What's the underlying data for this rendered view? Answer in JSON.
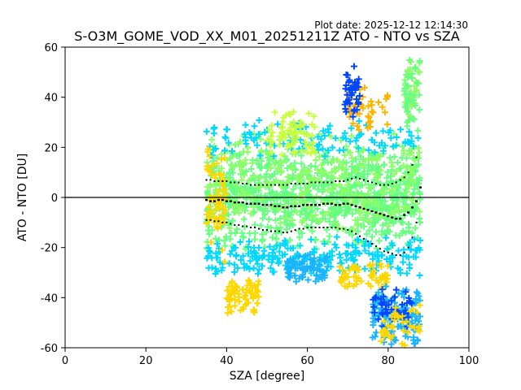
{
  "plot_date": "Plot date: 2025-12-12 12:14:30",
  "chart_data": {
    "type": "scatter",
    "title": "S-O3M_GOME_VOD_XX_M01_20251211Z ATO - NTO vs SZA",
    "xlabel": "SZA [degree]",
    "ylabel": "ATO - NTO [DU]",
    "xlim": [
      0,
      100
    ],
    "ylim": [
      -60,
      60
    ],
    "xticks": [
      0,
      20,
      40,
      60,
      80,
      100
    ],
    "yticks": [
      -60,
      -40,
      -20,
      0,
      20,
      40,
      60
    ],
    "grid": false,
    "reference_line_y": 0,
    "colors": {
      "cyan": "#00d8ff",
      "lightblue": "#1ab4ff",
      "blue": "#0046ff",
      "green": "#66ff80",
      "lightgreen": "#8cff66",
      "yellowgreen": "#c8ff3c",
      "yellow": "#ffd700",
      "orange": "#ffb400",
      "line": "#000000"
    },
    "scatter_clusters": [
      {
        "color": "green",
        "x": [
          35,
          88
        ],
        "y": [
          -22,
          22
        ],
        "n": 900
      },
      {
        "color": "lightgreen",
        "x": [
          35,
          88
        ],
        "y": [
          -15,
          28
        ],
        "n": 300
      },
      {
        "color": "cyan",
        "x": [
          35,
          88
        ],
        "y": [
          -32,
          -15
        ],
        "n": 220
      },
      {
        "color": "cyan",
        "x": [
          35,
          88
        ],
        "y": [
          15,
          32
        ],
        "n": 120
      },
      {
        "color": "lightblue",
        "x": [
          55,
          65
        ],
        "y": [
          -35,
          -22
        ],
        "n": 80
      },
      {
        "color": "yellow",
        "x": [
          35,
          40
        ],
        "y": [
          -28,
          25
        ],
        "n": 60
      },
      {
        "color": "yellow",
        "x": [
          40,
          48
        ],
        "y": [
          -48,
          -30
        ],
        "n": 70
      },
      {
        "color": "yellow",
        "x": [
          68,
          80
        ],
        "y": [
          -38,
          -25
        ],
        "n": 60
      },
      {
        "color": "orange",
        "x": [
          70,
          80
        ],
        "y": [
          25,
          47
        ],
        "n": 45
      },
      {
        "color": "yellowgreen",
        "x": [
          50,
          62
        ],
        "y": [
          15,
          35
        ],
        "n": 70
      },
      {
        "color": "lightblue",
        "x": [
          76,
          88
        ],
        "y": [
          -60,
          -35
        ],
        "n": 140
      },
      {
        "color": "blue",
        "x": [
          69,
          73
        ],
        "y": [
          32,
          53
        ],
        "n": 40
      },
      {
        "color": "blue",
        "x": [
          76,
          86
        ],
        "y": [
          -55,
          -35
        ],
        "n": 45
      },
      {
        "color": "yellow",
        "x": [
          78,
          88
        ],
        "y": [
          -60,
          -40
        ],
        "n": 40
      },
      {
        "color": "lightgreen",
        "x": [
          84,
          88
        ],
        "y": [
          30,
          58
        ],
        "n": 35
      },
      {
        "color": "green",
        "x": [
          84,
          88
        ],
        "y": [
          20,
          58
        ],
        "n": 35
      }
    ],
    "series": [
      {
        "x": [
          35,
          36,
          37,
          38,
          39,
          40,
          41,
          42,
          43,
          44,
          45,
          46,
          47,
          48,
          49,
          50,
          51,
          52,
          53,
          54,
          55,
          56,
          57,
          58,
          59,
          60,
          61,
          62,
          63,
          64,
          65,
          66,
          67,
          68,
          69,
          70,
          71,
          72,
          73,
          74,
          75,
          76,
          77,
          78,
          79,
          80,
          81,
          82,
          83,
          84,
          85,
          86,
          87,
          88
        ],
        "values": [
          -1,
          -1.5,
          -1.5,
          -1,
          -1,
          -1.5,
          -1.5,
          -2,
          -2,
          -2,
          -2.5,
          -2.5,
          -2.5,
          -2.5,
          -3,
          -3,
          -3,
          -3.5,
          -3.5,
          -4,
          -4,
          -3.5,
          -3.5,
          -3.5,
          -3,
          -3,
          -3,
          -3,
          -3,
          -2.5,
          -2.5,
          -2.5,
          -3,
          -3,
          -2.5,
          -2.5,
          -3,
          -3.5,
          -4,
          -4.5,
          -5,
          -5.5,
          -6,
          -6.5,
          -7,
          -7.5,
          -8,
          -8.5,
          -8.5,
          -7,
          -6,
          -4,
          -1.5,
          4
        ]
      },
      {
        "x": [
          35,
          36,
          37,
          38,
          39,
          40,
          41,
          42,
          43,
          44,
          45,
          46,
          47,
          48,
          49,
          50,
          51,
          52,
          53,
          54,
          55,
          56,
          57,
          58,
          59,
          60,
          61,
          62,
          63,
          64,
          65,
          66,
          67,
          68,
          69,
          70,
          71,
          72,
          73,
          74,
          75,
          76,
          77,
          78,
          79,
          80,
          81,
          82,
          83,
          84,
          85,
          86,
          87
        ],
        "values": [
          7,
          7,
          6.5,
          6.5,
          6.5,
          6.5,
          6,
          6,
          6,
          5.5,
          5.5,
          5,
          5,
          5,
          5,
          5,
          5,
          5,
          5,
          5,
          5,
          5.5,
          5.5,
          5.5,
          5.5,
          5.5,
          6,
          6,
          6,
          6,
          6,
          6,
          6.5,
          6.5,
          6.5,
          7,
          7.5,
          8,
          7.5,
          7,
          6.5,
          6,
          5.5,
          5,
          5,
          5,
          5.5,
          6,
          7,
          8,
          10,
          13,
          16
        ]
      },
      {
        "x": [
          35,
          36,
          37,
          38,
          39,
          40,
          41,
          42,
          43,
          44,
          45,
          46,
          47,
          48,
          49,
          50,
          51,
          52,
          53,
          54,
          55,
          56,
          57,
          58,
          59,
          60,
          61,
          62,
          63,
          64,
          65,
          66,
          67,
          68,
          69,
          70,
          71,
          72,
          73,
          74,
          75,
          76,
          77,
          78,
          79,
          80,
          81,
          82,
          83,
          84,
          85,
          86,
          87
        ],
        "values": [
          -9,
          -9,
          -9.5,
          -9.5,
          -10,
          -10,
          -10.5,
          -11,
          -11,
          -11.5,
          -11.5,
          -12,
          -12,
          -12.5,
          -13,
          -13,
          -13.5,
          -13.5,
          -13.5,
          -14,
          -14,
          -13.5,
          -13,
          -12.5,
          -12.5,
          -12,
          -12,
          -12,
          -12,
          -12,
          -12,
          -12,
          -12,
          -12.5,
          -12.5,
          -13,
          -13.5,
          -14.5,
          -15.5,
          -16.5,
          -17.5,
          -18.5,
          -19.5,
          -20.5,
          -21.5,
          -22,
          -22.5,
          -23,
          -23,
          -22,
          -20,
          -16,
          -10
        ]
      }
    ]
  }
}
